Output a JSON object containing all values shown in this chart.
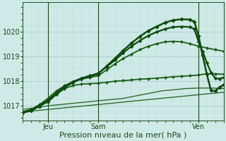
{
  "bg_color": "#ceeae6",
  "grid_color_major": "#a8ccca",
  "grid_color_minor": "#b8d8d6",
  "line_color_dark": "#1a4a1a",
  "tick_label_color": "#1a4a1a",
  "xlabel": "Pression niveau de la mer( hPa )",
  "xlabel_color": "#1a4a1a",
  "xlabel_fontsize": 8,
  "tick_fontsize": 7,
  "yticks": [
    1017,
    1018,
    1019,
    1020
  ],
  "ylim": [
    1016.4,
    1021.2
  ],
  "xlim": [
    0,
    48
  ],
  "xtick_positions": [
    6,
    18,
    42
  ],
  "xtick_labels": [
    "Jeu",
    "Sam",
    "Ven"
  ],
  "vline_positions": [
    6,
    18,
    42
  ],
  "series": [
    {
      "x": [
        0,
        3,
        6,
        9,
        12,
        15,
        18,
        21,
        24,
        27,
        30,
        33,
        36,
        39,
        42,
        45,
        48
      ],
      "y": [
        1016.75,
        1016.8,
        1016.85,
        1016.9,
        1016.95,
        1017.0,
        1017.05,
        1017.1,
        1017.15,
        1017.2,
        1017.25,
        1017.3,
        1017.35,
        1017.4,
        1017.45,
        1017.5,
        1017.55
      ],
      "color": "#2e6b2e",
      "lw": 1.0,
      "marker": null,
      "zorder": 2
    },
    {
      "x": [
        0,
        3,
        6,
        9,
        12,
        15,
        18,
        21,
        24,
        27,
        30,
        33,
        36,
        39,
        42,
        45,
        48
      ],
      "y": [
        1016.85,
        1016.92,
        1017.0,
        1017.05,
        1017.1,
        1017.15,
        1017.2,
        1017.25,
        1017.3,
        1017.4,
        1017.5,
        1017.6,
        1017.65,
        1017.7,
        1017.72,
        1017.72,
        1017.7
      ],
      "color": "#2e6b2e",
      "lw": 1.0,
      "marker": null,
      "zorder": 2
    },
    {
      "x": [
        0,
        2,
        4,
        6,
        8,
        10,
        12,
        14,
        16,
        18,
        20,
        22,
        24,
        26,
        28,
        30,
        32,
        34,
        36,
        38,
        40,
        42,
        44,
        46,
        48
      ],
      "y": [
        1016.75,
        1016.85,
        1017.0,
        1017.15,
        1017.45,
        1017.7,
        1017.82,
        1017.88,
        1017.9,
        1017.92,
        1017.95,
        1018.0,
        1018.02,
        1018.05,
        1018.08,
        1018.1,
        1018.12,
        1018.15,
        1018.18,
        1018.2,
        1018.22,
        1018.25,
        1018.3,
        1018.3,
        1018.28
      ],
      "color": "#1a5c1a",
      "lw": 1.3,
      "marker": "D",
      "markersize": 2.2,
      "zorder": 3
    },
    {
      "x": [
        0,
        2,
        4,
        6,
        8,
        10,
        12,
        14,
        16,
        18,
        20,
        22,
        24,
        26,
        28,
        30,
        32,
        34,
        36,
        38,
        40,
        42,
        44,
        46,
        48
      ],
      "y": [
        1016.75,
        1016.85,
        1017.05,
        1017.3,
        1017.6,
        1017.82,
        1017.98,
        1018.08,
        1018.15,
        1018.22,
        1018.45,
        1018.7,
        1018.92,
        1019.1,
        1019.28,
        1019.42,
        1019.52,
        1019.6,
        1019.62,
        1019.6,
        1019.52,
        1019.42,
        1019.35,
        1019.28,
        1019.22
      ],
      "color": "#1a5c1a",
      "lw": 1.3,
      "marker": "D",
      "markersize": 2.2,
      "zorder": 3
    },
    {
      "x": [
        0,
        2,
        4,
        6,
        8,
        10,
        12,
        14,
        16,
        18,
        20,
        22,
        24,
        26,
        28,
        30,
        32,
        34,
        36,
        38,
        40,
        41,
        42,
        43,
        44,
        45,
        46,
        47,
        48
      ],
      "y": [
        1016.75,
        1016.82,
        1017.0,
        1017.22,
        1017.52,
        1017.78,
        1017.98,
        1018.12,
        1018.22,
        1018.32,
        1018.58,
        1018.85,
        1019.15,
        1019.42,
        1019.65,
        1019.85,
        1020.0,
        1020.12,
        1020.2,
        1020.22,
        1020.2,
        1020.12,
        1019.62,
        1019.2,
        1018.75,
        1018.35,
        1018.12,
        1018.1,
        1018.15
      ],
      "color": "#0e4a0e",
      "lw": 1.6,
      "marker": "D",
      "markersize": 2.5,
      "zorder": 4
    },
    {
      "x": [
        0,
        2,
        4,
        6,
        8,
        10,
        12,
        14,
        16,
        18,
        20,
        22,
        24,
        26,
        28,
        30,
        32,
        34,
        36,
        38,
        40,
        41,
        42,
        43,
        44,
        45,
        46,
        47,
        48
      ],
      "y": [
        1016.72,
        1016.8,
        1016.98,
        1017.2,
        1017.5,
        1017.75,
        1017.95,
        1018.1,
        1018.2,
        1018.3,
        1018.6,
        1018.92,
        1019.25,
        1019.55,
        1019.82,
        1020.05,
        1020.22,
        1020.38,
        1020.48,
        1020.52,
        1020.5,
        1020.42,
        1019.85,
        1019.05,
        1018.28,
        1017.62,
        1017.6,
        1017.75,
        1017.85
      ],
      "color": "#0e4a0e",
      "lw": 1.8,
      "marker": "D",
      "markersize": 2.8,
      "zorder": 5
    }
  ]
}
